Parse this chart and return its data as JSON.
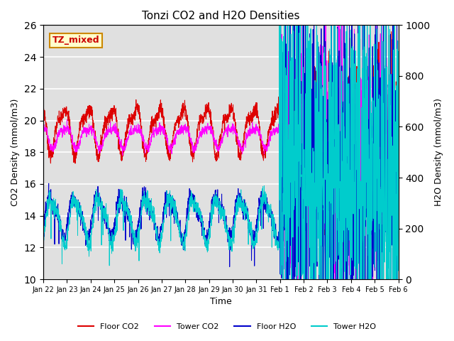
{
  "title": "Tonzi CO2 and H2O Densities",
  "xlabel": "Time",
  "ylabel_left": "CO2 Density (mmol/m3)",
  "ylabel_right": "H2O Density (mmol/m3)",
  "ylim_left": [
    10,
    26
  ],
  "ylim_right": [
    0,
    1000
  ],
  "annotation_text": "TZ_mixed",
  "annotation_color": "#cc0000",
  "annotation_bg": "#ffffcc",
  "annotation_border": "#cc8800",
  "colors": {
    "floor_co2": "#dd0000",
    "tower_co2": "#ff00ff",
    "floor_h2o": "#0000cc",
    "tower_h2o": "#00cccc"
  },
  "legend_labels": [
    "Floor CO2",
    "Tower CO2",
    "Floor H2O",
    "Tower H2O"
  ],
  "background_color": "#e0e0e0",
  "tick_dates": [
    "Jan 22",
    "Jan 23",
    "Jan 24",
    "Jan 25",
    "Jan 26",
    "Jan 27",
    "Jan 28",
    "Jan 29",
    "Jan 30",
    "Jan 31",
    "Feb 1",
    "Feb 2",
    "Feb 3",
    "Feb 4",
    "Feb 5",
    "Feb 6"
  ],
  "linewidth": 0.7
}
